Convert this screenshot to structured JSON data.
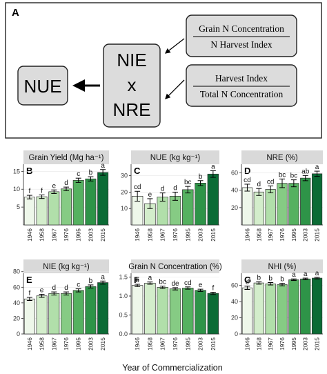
{
  "schematic": {
    "panel_label": "A",
    "nue": "NUE",
    "nie": "NIE",
    "times": "x",
    "nre": "NRE",
    "frac_top_num": "Grain N Concentration",
    "frac_top_den": "N Harvest Index",
    "frac_bot_num": "Harvest Index",
    "frac_bot_den": "Total N Concentration"
  },
  "xaxis_title": "Year of Commercialization",
  "colors": [
    "#eef7ea",
    "#d3edcb",
    "#b1dfaa",
    "#86cb84",
    "#55b160",
    "#2e9448",
    "#0b6b35"
  ],
  "chart_data": [
    {
      "letter": "B",
      "type": "bar",
      "title": "Grain Yield (Mg ha⁻¹)",
      "categories": [
        "1946",
        "1958",
        "1967",
        "1976",
        "1995",
        "2003",
        "2015"
      ],
      "values": [
        7.8,
        7.9,
        9.3,
        10.1,
        12.5,
        12.9,
        14.7
      ],
      "errors": [
        0.5,
        0.5,
        0.5,
        0.5,
        0.6,
        0.6,
        0.8
      ],
      "letters": [
        "f",
        "f",
        "e",
        "d",
        "c",
        "b",
        "a"
      ],
      "ylim": [
        0,
        17
      ],
      "yticks": [
        "5",
        "10",
        "15"
      ]
    },
    {
      "letter": "C",
      "type": "bar",
      "title": "NUE (kg kg⁻¹)",
      "categories": [
        "1946",
        "1958",
        "1967",
        "1976",
        "1995",
        "2003",
        "2015"
      ],
      "values": [
        17.5,
        13.0,
        17.0,
        17.5,
        21.5,
        25.5,
        31.0
      ],
      "errors": [
        3.0,
        3.0,
        2.5,
        2.5,
        2.0,
        1.5,
        2.0
      ],
      "letters": [
        "cd",
        "e",
        "d",
        "d",
        "bc",
        "b",
        "a"
      ],
      "ylim": [
        0,
        37
      ],
      "yticks": [
        "10",
        "20",
        "30"
      ]
    },
    {
      "letter": "D",
      "type": "bar",
      "title": "NRE (%)",
      "categories": [
        "1946",
        "1958",
        "1967",
        "1976",
        "1995",
        "2003",
        "2015"
      ],
      "values": [
        43,
        38,
        41,
        48,
        48,
        54,
        59
      ],
      "errors": [
        4,
        4,
        4,
        5,
        4,
        3,
        3
      ],
      "letters": [
        "cd",
        "d",
        "cd",
        "bc",
        "bc",
        "ab",
        "a"
      ],
      "ylim": [
        0,
        70
      ],
      "yticks": [
        "20",
        "40",
        "60"
      ]
    },
    {
      "letter": "E",
      "type": "bar",
      "title": "NIE (kg kg⁻¹)",
      "categories": [
        "1946",
        "1958",
        "1967",
        "1976",
        "1995",
        "2003",
        "2015"
      ],
      "values": [
        45,
        49,
        52,
        52,
        56,
        61,
        66
      ],
      "errors": [
        2,
        2,
        2,
        2,
        2,
        2,
        2
      ],
      "letters": [
        "f",
        "e",
        "d",
        "d",
        "c",
        "b",
        "a"
      ],
      "ylim": [
        0,
        78
      ],
      "yticks": [
        "0",
        "20",
        "40",
        "60",
        "80"
      ]
    },
    {
      "letter": "F",
      "type": "bar",
      "title": "Grain N Concentration (%)",
      "categories": [
        "1946",
        "1958",
        "1967",
        "1976",
        "1995",
        "2003",
        "2015"
      ],
      "values": [
        1.28,
        1.34,
        1.23,
        1.19,
        1.21,
        1.15,
        1.07
      ],
      "errors": [
        0.03,
        0.03,
        0.03,
        0.03,
        0.03,
        0.03,
        0.03
      ],
      "letters": [
        "b",
        "a",
        "bc",
        "de",
        "cd",
        "e",
        "f"
      ],
      "ylim": [
        0,
        1.6
      ],
      "yticks": [
        "0.0",
        "0.5",
        "1.0",
        "1.5"
      ]
    },
    {
      "letter": "G",
      "type": "bar",
      "title": "NHI (%)",
      "categories": [
        "1946",
        "1958",
        "1967",
        "1976",
        "1995",
        "2003",
        "2015"
      ],
      "values": [
        57,
        63,
        62,
        61,
        67,
        68,
        69
      ],
      "errors": [
        2,
        1.5,
        1.5,
        1.5,
        1,
        1,
        1
      ],
      "letters": [
        "c",
        "b",
        "b",
        "b",
        "a",
        "a",
        "a"
      ],
      "ylim": [
        0,
        75
      ],
      "yticks": [
        "0",
        "20",
        "40",
        "60"
      ]
    }
  ]
}
